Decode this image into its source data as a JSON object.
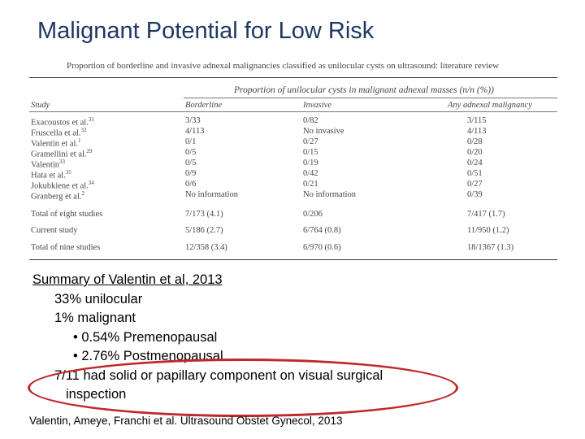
{
  "title": "Malignant Potential for Low Risk",
  "table": {
    "caption": "Proportion of borderline and invasive adnexal malignancies classified as unilocular cysts on ultrasound: literature review",
    "spanning_header": "Proportion of unilocular cysts in malignant adnexal masses (n/n (%))",
    "columns": [
      "Study",
      "Borderline",
      "Invasive",
      "Any adnexal malignancy"
    ],
    "rows": [
      {
        "study": "Exacoustos et al.",
        "ref": "31",
        "borderline": "3/33",
        "invasive": "0/82",
        "any": "3/115"
      },
      {
        "study": "Fruscella et al.",
        "ref": "32",
        "borderline": "4/113",
        "invasive": "No invasive",
        "any": "4/113"
      },
      {
        "study": "Valentin et al.",
        "ref": "1",
        "borderline": "0/1",
        "invasive": "0/27",
        "any": "0/28"
      },
      {
        "study": "Gramellini et al.",
        "ref": "29",
        "borderline": "0/5",
        "invasive": "0/15",
        "any": "0/20"
      },
      {
        "study": "Valentin",
        "ref": "33",
        "borderline": "0/5",
        "invasive": "0/19",
        "any": "0/24"
      },
      {
        "study": "Hata et al.",
        "ref": "35",
        "borderline": "0/9",
        "invasive": "0/42",
        "any": "0/51"
      },
      {
        "study": "Jokubkiene et al.",
        "ref": "34",
        "borderline": "0/6",
        "invasive": "0/21",
        "any": "0/27"
      },
      {
        "study": "Granberg et al.",
        "ref": "2",
        "borderline": "No information",
        "invasive": "No information",
        "any": "0/39"
      },
      {
        "study": "Total of eight studies",
        "ref": "",
        "borderline": "7/173 (4.1)",
        "invasive": "0/206",
        "any": "7/417 (1.7)"
      },
      {
        "study": "Current study",
        "ref": "",
        "borderline": "5/186 (2.7)",
        "invasive": "6/764 (0.8)",
        "any": "11/950 (1.2)"
      },
      {
        "study": "Total of nine studies",
        "ref": "",
        "borderline": "12/358 (3.4)",
        "invasive": "6/970 (0.6)",
        "any": "18/1367 (1.3)"
      }
    ]
  },
  "summary": {
    "heading": "Summary of Valentin et al, 2013",
    "unilocular": "33% unilocular",
    "malignant": "1% malignant",
    "premenopausal": "• 0.54% Premenopausal",
    "postmenopausal": "• 2.76% Postmenopausal",
    "solid_line1": "7/11 had solid or papillary component on visual surgical",
    "solid_line2": "inspection"
  },
  "highlight_color": "#c0282e",
  "title_color": "#1f3864",
  "citation": "Valentin, Ameye, Franchi et al. Ultrasound Obstet Gynecol, 2013"
}
